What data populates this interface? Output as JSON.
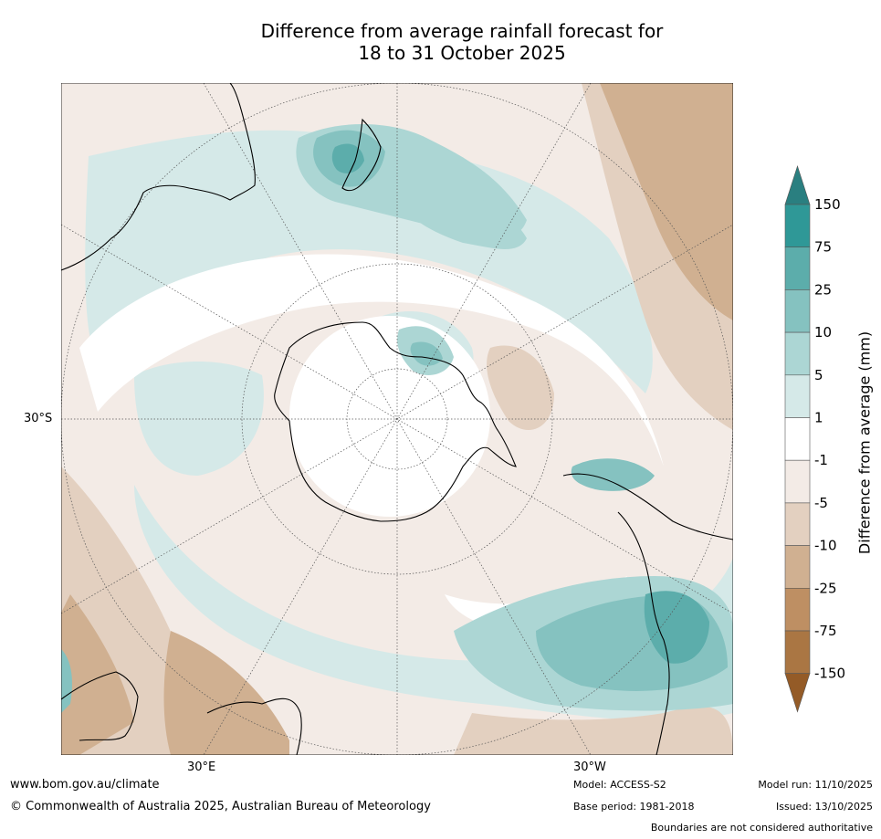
{
  "title": {
    "line1": "Difference from average rainfall forecast for",
    "line2": "18 to 31 October 2025"
  },
  "map": {
    "projection": "south-polar stereographic",
    "graticule_labels": {
      "lat": "30°S",
      "lon_left": "30°E",
      "lon_right": "30°W"
    }
  },
  "legend": {
    "title": "Difference from average (mm)",
    "tick_labels": [
      "150",
      "75",
      "25",
      "10",
      "5",
      "1",
      "-1",
      "-5",
      "-10",
      "-25",
      "-75",
      "-150"
    ],
    "bin_colors": [
      "#2f9897",
      "#5cadab",
      "#85c2c0",
      "#acd6d4",
      "#d5e9e8",
      "#ffffff",
      "#f3ebe6",
      "#e3d0c0",
      "#d0b091",
      "#be8f63",
      "#aa7643"
    ],
    "extend_top_color": "#2a7f80",
    "extend_bottom_color": "#945b27"
  },
  "footer": {
    "website": "www.bom.gov.au/climate",
    "copyright": "© Commonwealth of Australia 2025, Australian Bureau of Meteorology",
    "model": "Model: ACCESS-S2",
    "base_period": "Base period: 1981-2018",
    "model_run": "Model run: 11/10/2025",
    "issued": "Issued: 13/10/2025",
    "disclaimer": "Boundaries are not considered authoritative"
  }
}
